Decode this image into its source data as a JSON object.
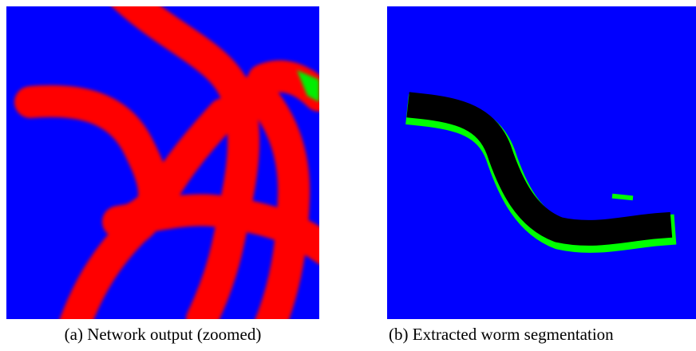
{
  "panels": [
    {
      "caption": "(a) Network output (zoomed)"
    },
    {
      "caption": "(b) Extracted worm segmentation"
    }
  ]
}
